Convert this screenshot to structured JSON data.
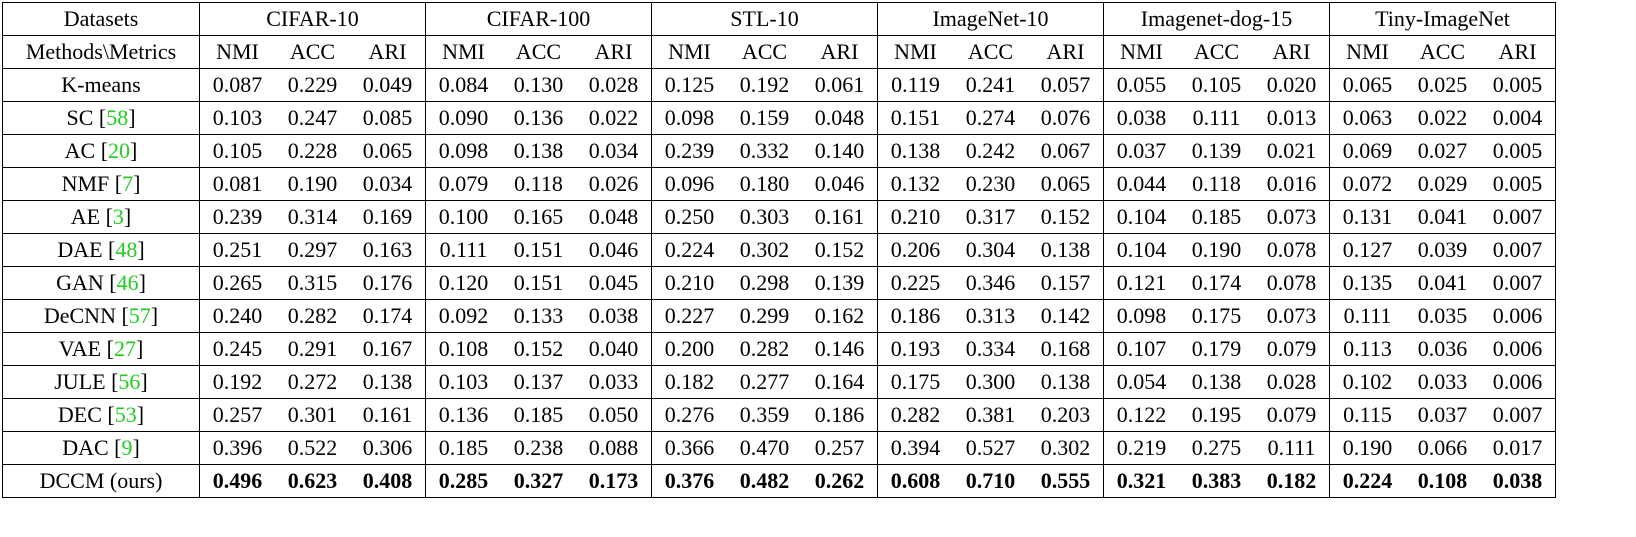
{
  "table": {
    "corner_top": "Datasets",
    "corner_bottom": "Methods\\Metrics",
    "datasets": [
      "CIFAR-10",
      "CIFAR-100",
      "STL-10",
      "ImageNet-10",
      "Imagenet-dog-15",
      "Tiny-ImageNet"
    ],
    "metrics": [
      "NMI",
      "ACC",
      "ARI"
    ],
    "brackets": [
      "[",
      "]"
    ],
    "rows": [
      {
        "method": "K-means",
        "values": [
          "0.087",
          "0.229",
          "0.049",
          "0.084",
          "0.130",
          "0.028",
          "0.125",
          "0.192",
          "0.061",
          "0.119",
          "0.241",
          "0.057",
          "0.055",
          "0.105",
          "0.020",
          "0.065",
          "0.025",
          "0.005"
        ]
      },
      {
        "method": "SC",
        "cite": "58",
        "values": [
          "0.103",
          "0.247",
          "0.085",
          "0.090",
          "0.136",
          "0.022",
          "0.098",
          "0.159",
          "0.048",
          "0.151",
          "0.274",
          "0.076",
          "0.038",
          "0.111",
          "0.013",
          "0.063",
          "0.022",
          "0.004"
        ]
      },
      {
        "method": "AC",
        "cite": "20",
        "values": [
          "0.105",
          "0.228",
          "0.065",
          "0.098",
          "0.138",
          "0.034",
          "0.239",
          "0.332",
          "0.140",
          "0.138",
          "0.242",
          "0.067",
          "0.037",
          "0.139",
          "0.021",
          "0.069",
          "0.027",
          "0.005"
        ]
      },
      {
        "method": "NMF",
        "cite": "7",
        "values": [
          "0.081",
          "0.190",
          "0.034",
          "0.079",
          "0.118",
          "0.026",
          "0.096",
          "0.180",
          "0.046",
          "0.132",
          "0.230",
          "0.065",
          "0.044",
          "0.118",
          "0.016",
          "0.072",
          "0.029",
          "0.005"
        ]
      },
      {
        "method": "AE",
        "cite": "3",
        "values": [
          "0.239",
          "0.314",
          "0.169",
          "0.100",
          "0.165",
          "0.048",
          "0.250",
          "0.303",
          "0.161",
          "0.210",
          "0.317",
          "0.152",
          "0.104",
          "0.185",
          "0.073",
          "0.131",
          "0.041",
          "0.007"
        ]
      },
      {
        "method": "DAE",
        "cite": "48",
        "values": [
          "0.251",
          "0.297",
          "0.163",
          "0.111",
          "0.151",
          "0.046",
          "0.224",
          "0.302",
          "0.152",
          "0.206",
          "0.304",
          "0.138",
          "0.104",
          "0.190",
          "0.078",
          "0.127",
          "0.039",
          "0.007"
        ]
      },
      {
        "method": "GAN",
        "cite": "46",
        "values": [
          "0.265",
          "0.315",
          "0.176",
          "0.120",
          "0.151",
          "0.045",
          "0.210",
          "0.298",
          "0.139",
          "0.225",
          "0.346",
          "0.157",
          "0.121",
          "0.174",
          "0.078",
          "0.135",
          "0.041",
          "0.007"
        ]
      },
      {
        "method": "DeCNN",
        "cite": "57",
        "values": [
          "0.240",
          "0.282",
          "0.174",
          "0.092",
          "0.133",
          "0.038",
          "0.227",
          "0.299",
          "0.162",
          "0.186",
          "0.313",
          "0.142",
          "0.098",
          "0.175",
          "0.073",
          "0.111",
          "0.035",
          "0.006"
        ]
      },
      {
        "method": "VAE",
        "cite": "27",
        "values": [
          "0.245",
          "0.291",
          "0.167",
          "0.108",
          "0.152",
          "0.040",
          "0.200",
          "0.282",
          "0.146",
          "0.193",
          "0.334",
          "0.168",
          "0.107",
          "0.179",
          "0.079",
          "0.113",
          "0.036",
          "0.006"
        ]
      },
      {
        "method": "JULE",
        "cite": "56",
        "values": [
          "0.192",
          "0.272",
          "0.138",
          "0.103",
          "0.137",
          "0.033",
          "0.182",
          "0.277",
          "0.164",
          "0.175",
          "0.300",
          "0.138",
          "0.054",
          "0.138",
          "0.028",
          "0.102",
          "0.033",
          "0.006"
        ]
      },
      {
        "method": "DEC",
        "cite": "53",
        "values": [
          "0.257",
          "0.301",
          "0.161",
          "0.136",
          "0.185",
          "0.050",
          "0.276",
          "0.359",
          "0.186",
          "0.282",
          "0.381",
          "0.203",
          "0.122",
          "0.195",
          "0.079",
          "0.115",
          "0.037",
          "0.007"
        ]
      },
      {
        "method": "DAC",
        "cite": "9",
        "values": [
          "0.396",
          "0.522",
          "0.306",
          "0.185",
          "0.238",
          "0.088",
          "0.366",
          "0.470",
          "0.257",
          "0.394",
          "0.527",
          "0.302",
          "0.219",
          "0.275",
          "0.111",
          "0.190",
          "0.066",
          "0.017"
        ]
      },
      {
        "method": "DCCM (ours)",
        "bold": true,
        "values": [
          "0.496",
          "0.623",
          "0.408",
          "0.285",
          "0.327",
          "0.173",
          "0.376",
          "0.482",
          "0.262",
          "0.608",
          "0.710",
          "0.555",
          "0.321",
          "0.383",
          "0.182",
          "0.224",
          "0.108",
          "0.038"
        ]
      }
    ]
  }
}
